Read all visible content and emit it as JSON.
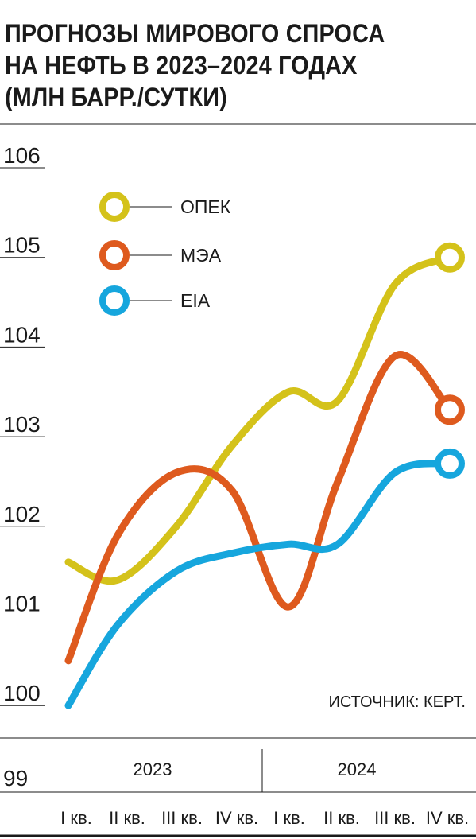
{
  "title_lines": [
    "ПРОГНОЗЫ МИРОВОГО СПРОСА",
    "НА НЕФТЬ В 2023–2024 ГОДАХ",
    "(МЛН БАРР./СУТКИ)"
  ],
  "source": "ИСТОЧНИК: КЕРТ.",
  "chart_data": {
    "type": "line",
    "ylim": [
      99,
      106
    ],
    "y_ticks": [
      "106",
      "105",
      "104",
      "103",
      "102",
      "101",
      "100",
      "99"
    ],
    "years": [
      "2023",
      "2024"
    ],
    "categories": [
      "I кв.",
      "II кв.",
      "III кв.",
      "IV кв.",
      "I кв.",
      "II кв.",
      "III кв.",
      "IV кв."
    ],
    "series": [
      {
        "name": "ОПЕК",
        "color": "#d4c21a",
        "values": [
          101.6,
          101.4,
          102.0,
          102.9,
          103.5,
          103.4,
          104.7,
          105.0
        ]
      },
      {
        "name": "МЭА",
        "color": "#de5a1e",
        "values": [
          100.5,
          101.9,
          102.6,
          102.4,
          101.1,
          102.5,
          103.9,
          103.3
        ]
      },
      {
        "name": "EIA",
        "color": "#16a6dd",
        "values": [
          100.0,
          100.9,
          101.5,
          101.7,
          101.8,
          101.8,
          102.6,
          102.7
        ]
      }
    ],
    "legend_position": "top-left"
  }
}
